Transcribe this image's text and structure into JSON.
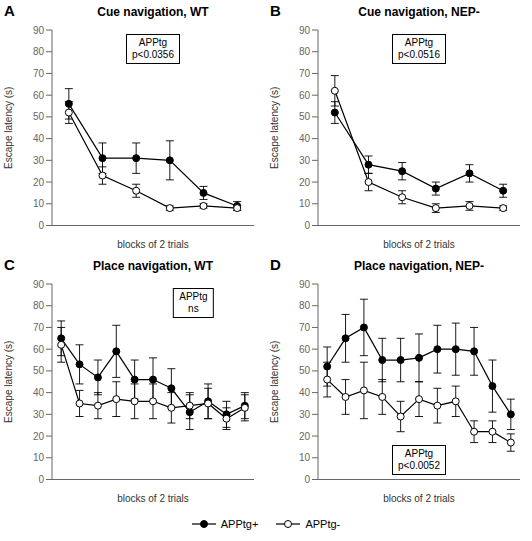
{
  "chart_data": [
    {
      "type": "line",
      "panel_label": "A",
      "title": "Cue navigation, WT",
      "annotation": "APPtg\np<0.0356",
      "xlabel": "blocks of 2 trials",
      "ylabel": "Escape latency (s)",
      "x": [
        1,
        2,
        3,
        4,
        5,
        6
      ],
      "xlim": [
        0.5,
        6.5
      ],
      "ylim": [
        0,
        90
      ],
      "yticks": [
        0,
        10,
        20,
        30,
        40,
        50,
        60,
        70,
        80,
        90
      ],
      "tick_labels": "y",
      "legend": "bottom",
      "series": [
        {
          "name": "APPtg+",
          "color": "#000000",
          "marker": "filled_circle",
          "values": [
            56,
            31,
            31,
            30,
            15,
            9
          ],
          "yerr": [
            7,
            7,
            7,
            9,
            3,
            2
          ]
        },
        {
          "name": "APPtg-",
          "color": "#000000",
          "marker": "open_circle",
          "values": [
            52,
            23,
            16,
            8,
            9,
            8
          ],
          "yerr": [
            5,
            4,
            3,
            1,
            1,
            1
          ]
        }
      ]
    },
    {
      "type": "line",
      "panel_label": "B",
      "title": "Cue navigation, NEP-",
      "annotation": "APPtg\np<0.0516",
      "xlabel": "blocks of 2 trials",
      "ylabel": "Escape latency (s)",
      "x": [
        1,
        2,
        3,
        4,
        5,
        6
      ],
      "xlim": [
        0.5,
        6.5
      ],
      "ylim": [
        0,
        90
      ],
      "yticks": [
        0,
        10,
        20,
        30,
        40,
        50,
        60,
        70,
        80,
        90
      ],
      "tick_labels": "y",
      "legend": "bottom",
      "series": [
        {
          "name": "APPtg+",
          "color": "#000000",
          "marker": "filled_circle",
          "values": [
            52,
            28,
            25,
            17,
            24,
            16
          ],
          "yerr": [
            5,
            4,
            4,
            3,
            4,
            3
          ]
        },
        {
          "name": "APPtg-",
          "color": "#000000",
          "marker": "open_circle",
          "values": [
            62,
            20,
            13,
            8,
            9,
            8
          ],
          "yerr": [
            7,
            4,
            3,
            2,
            2,
            1
          ]
        }
      ]
    },
    {
      "type": "line",
      "panel_label": "C",
      "title": "Place navigation, WT",
      "annotation": "APPtg\nns",
      "xlabel": "blocks of 2 trials",
      "ylabel": "Escape latency (s)",
      "x": [
        1,
        2,
        3,
        4,
        5,
        6,
        7,
        8,
        9,
        10,
        11
      ],
      "xlim": [
        0.5,
        11.5
      ],
      "ylim": [
        0,
        90
      ],
      "yticks": [
        0,
        10,
        20,
        30,
        40,
        50,
        60,
        70,
        80,
        90
      ],
      "tick_labels": "y",
      "legend": "bottom",
      "series": [
        {
          "name": "APPtg+",
          "color": "#000000",
          "marker": "filled_circle",
          "values": [
            65,
            53,
            47,
            59,
            46,
            46,
            42,
            31,
            36,
            30,
            34
          ],
          "yerr": [
            8,
            9,
            8,
            12,
            9,
            10,
            9,
            8,
            8,
            6,
            6
          ]
        },
        {
          "name": "APPtg-",
          "color": "#000000",
          "marker": "open_circle",
          "values": [
            62,
            35,
            34,
            37,
            36,
            36,
            33,
            34,
            35,
            28,
            33
          ],
          "yerr": [
            8,
            6,
            6,
            8,
            8,
            8,
            7,
            6,
            7,
            5,
            6
          ]
        }
      ]
    },
    {
      "type": "line",
      "panel_label": "D",
      "title": "Place navigation, NEP-",
      "annotation": "APPtg\np<0.0052",
      "xlabel": "blocks of 2 trials",
      "ylabel": "Escape latency (s)",
      "x": [
        1,
        2,
        3,
        4,
        5,
        6,
        7,
        8,
        9,
        10,
        11
      ],
      "xlim": [
        0.5,
        11.5
      ],
      "ylim": [
        0,
        90
      ],
      "yticks": [
        0,
        10,
        20,
        30,
        40,
        50,
        60,
        70,
        80,
        90
      ],
      "tick_labels": "y",
      "legend": "bottom",
      "series": [
        {
          "name": "APPtg+",
          "color": "#000000",
          "marker": "filled_circle",
          "values": [
            52,
            65,
            70,
            55,
            55,
            56,
            60,
            60,
            59,
            43,
            30
          ],
          "yerr": [
            9,
            11,
            13,
            10,
            10,
            11,
            11,
            12,
            11,
            12,
            7
          ]
        },
        {
          "name": "APPtg-",
          "color": "#000000",
          "marker": "open_circle",
          "values": [
            46,
            38,
            41,
            38,
            29,
            37,
            34,
            36,
            22,
            22,
            17
          ],
          "yerr": [
            8,
            8,
            13,
            8,
            7,
            8,
            8,
            7,
            5,
            5,
            4
          ]
        }
      ]
    }
  ]
}
